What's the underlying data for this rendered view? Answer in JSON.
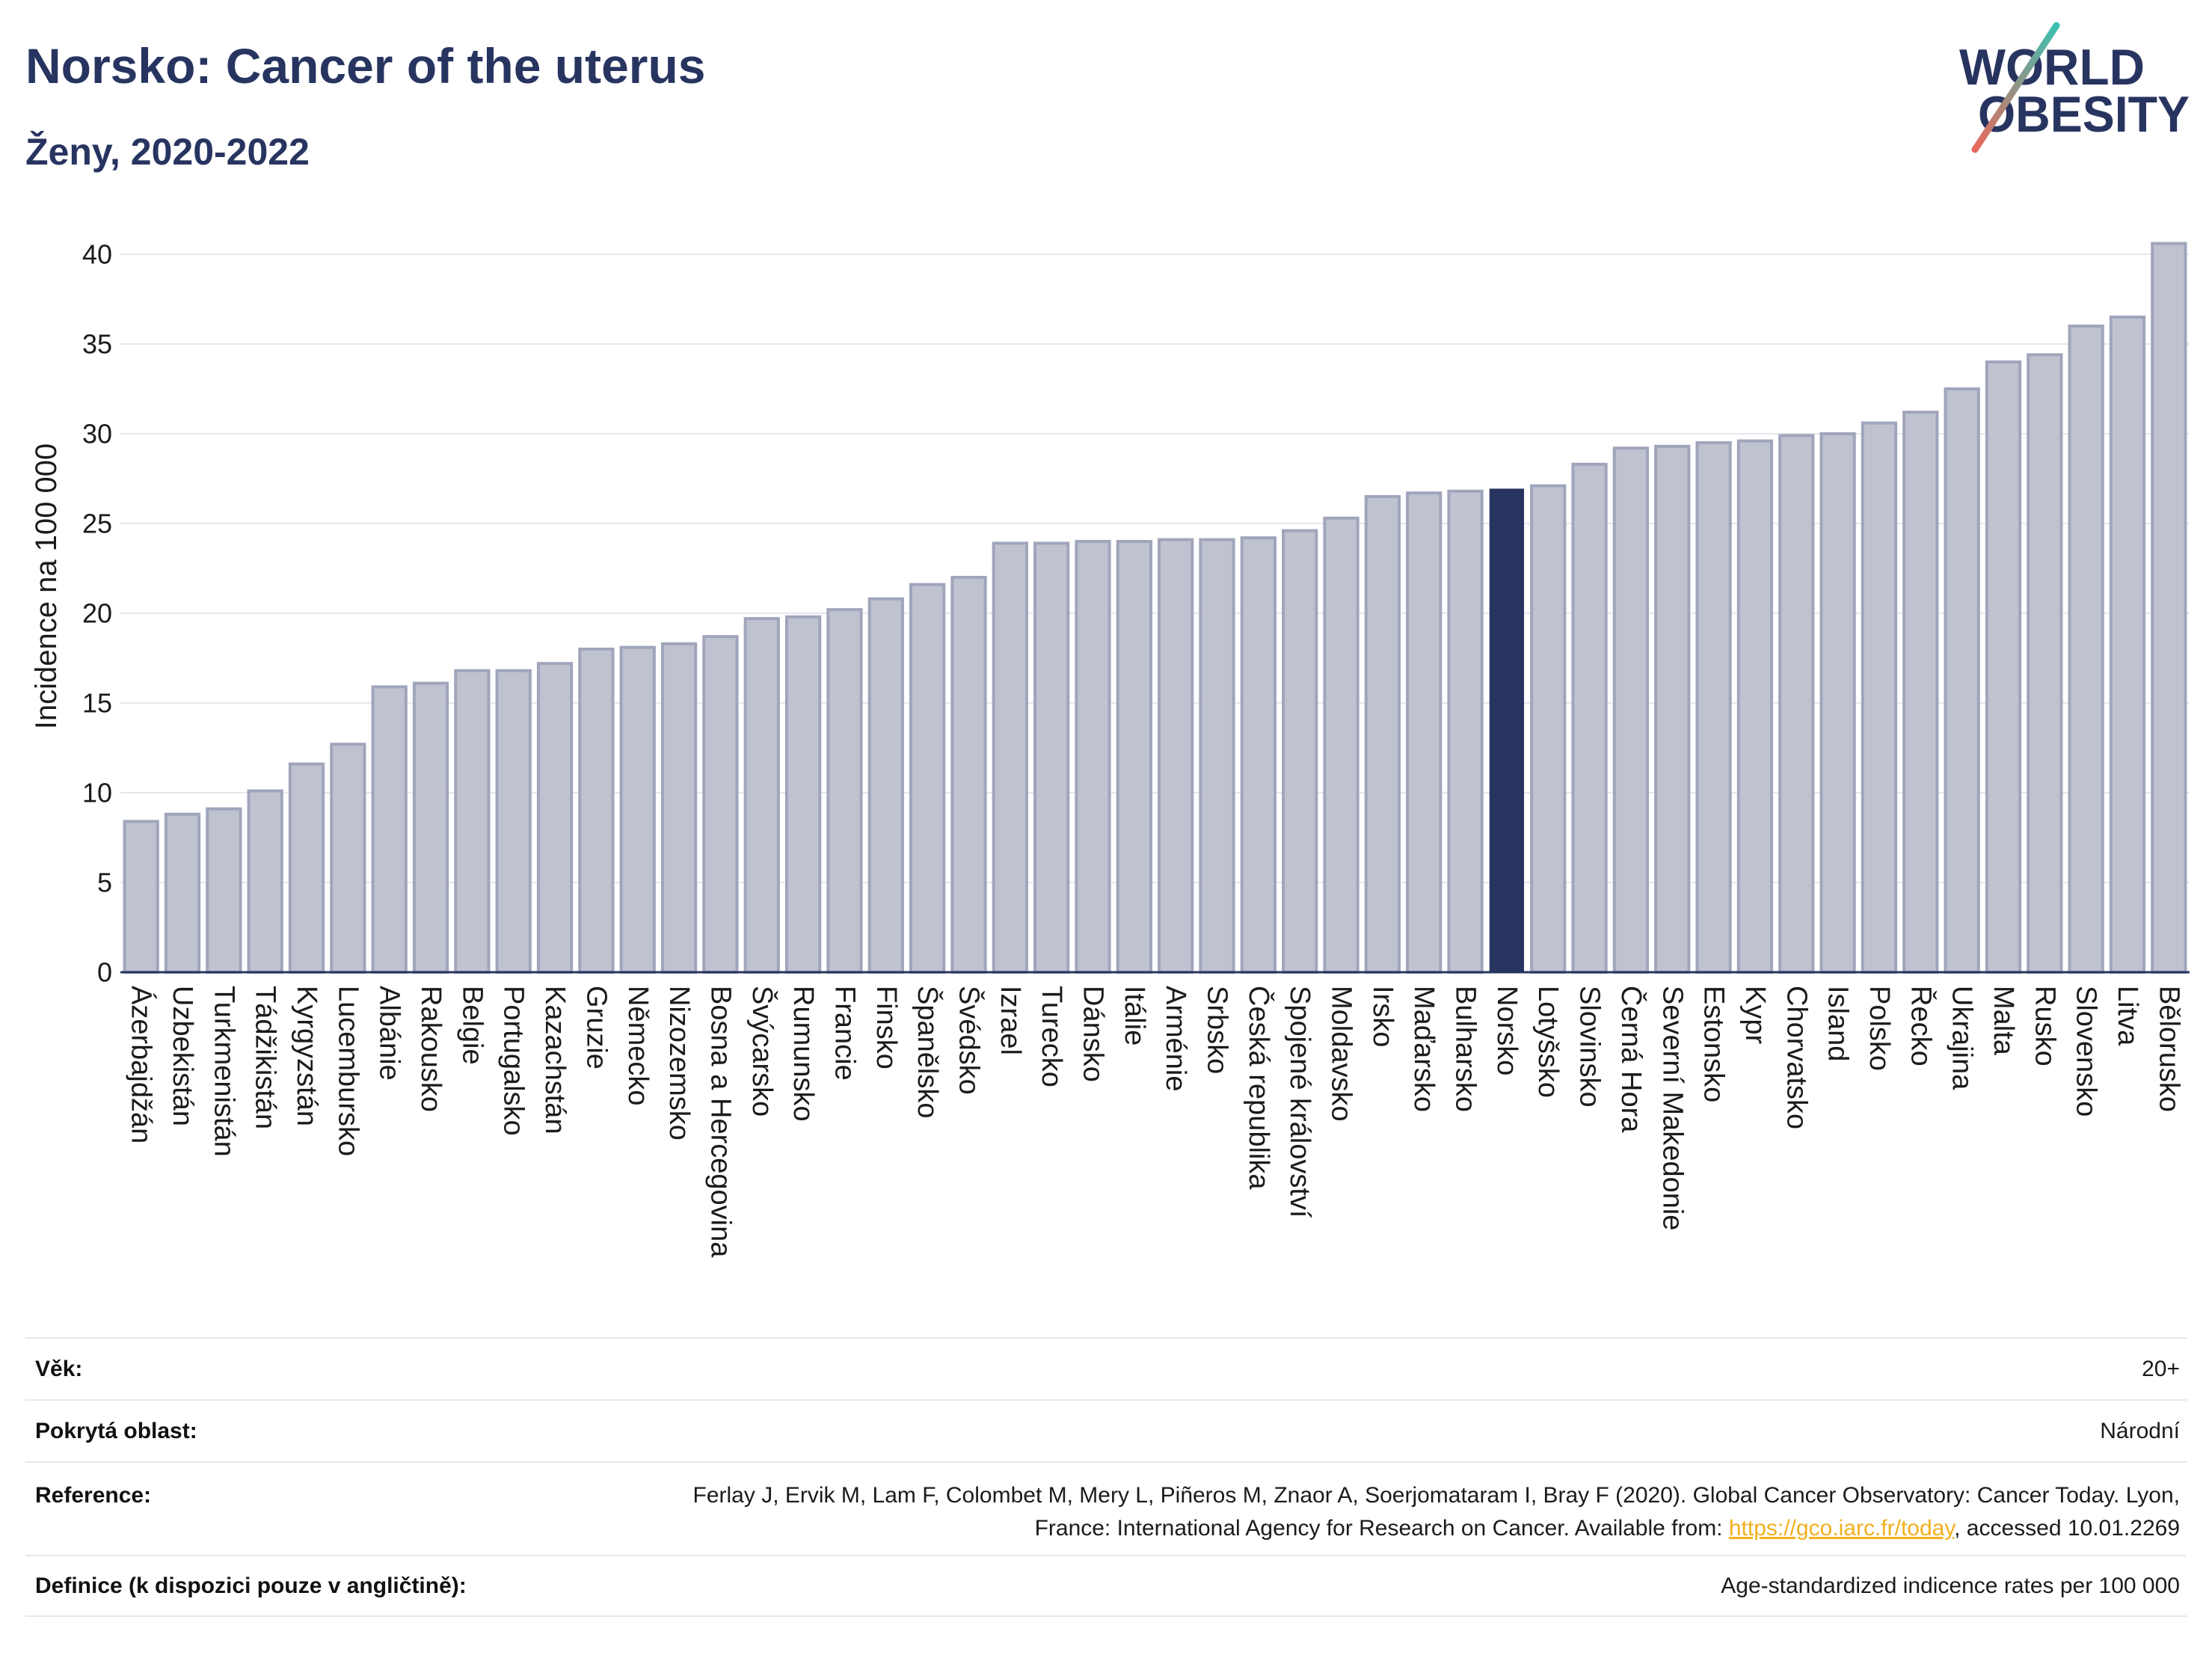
{
  "header": {
    "title": "Norsko: Cancer of the uterus",
    "subtitle": "Ženy, 2020-2022"
  },
  "logo": {
    "line1": "WORLD",
    "line2": "OBESITY"
  },
  "colors": {
    "navy": "#283460",
    "bar": "#bfc3d0",
    "bar_stroke": "#a0a5bb",
    "highlight": "#283460",
    "grid": "#e6e7ec",
    "link": "#f2b01e",
    "logo_teal": "#3dbfb1",
    "logo_coral": "#e8685a"
  },
  "chart_data": {
    "type": "bar",
    "ylabel": "Incidence na 100 000",
    "ylim": [
      0,
      42
    ],
    "yticks": [
      0,
      5,
      10,
      15,
      20,
      25,
      30,
      35,
      40
    ],
    "grid": true,
    "highlight_index": 33,
    "categories": [
      "Ázerbajdžán",
      "Uzbekistán",
      "Turkmenistán",
      "Tádžikistán",
      "Kyrgyzstán",
      "Lucembursko",
      "Albánie",
      "Rakousko",
      "Belgie",
      "Portugalsko",
      "Kazachstán",
      "Gruzie",
      "Německo",
      "Nizozemsko",
      "Bosna a Hercegovina",
      "Švýcarsko",
      "Rumunsko",
      "Francie",
      "Finsko",
      "Španělsko",
      "Švédsko",
      "Izrael",
      "Turecko",
      "Dánsko",
      "Itálie",
      "Arménie",
      "Srbsko",
      "Česká republika",
      "Spojené království",
      "Moldavsko",
      "Irsko",
      "Maďarsko",
      "Bulharsko",
      "Norsko",
      "Lotyšsko",
      "Slovinsko",
      "Černá Hora",
      "Severní Makedonie",
      "Estonsko",
      "Kypr",
      "Chorvatsko",
      "Island",
      "Polsko",
      "Řecko",
      "Ukrajina",
      "Malta",
      "Rusko",
      "Slovensko",
      "Litva",
      "Bělorusko"
    ],
    "values": [
      8.4,
      8.8,
      9.1,
      10.1,
      11.6,
      12.7,
      15.9,
      16.1,
      16.8,
      16.8,
      17.2,
      18.0,
      18.1,
      18.3,
      18.7,
      19.7,
      19.8,
      20.2,
      20.8,
      21.6,
      22.0,
      23.9,
      23.9,
      24.0,
      24.0,
      24.1,
      24.1,
      24.2,
      24.6,
      25.3,
      26.5,
      26.7,
      26.8,
      26.9,
      27.1,
      28.3,
      29.2,
      29.3,
      29.5,
      29.6,
      29.9,
      30.0,
      30.6,
      31.2,
      32.5,
      34.0,
      34.4,
      36.0,
      36.5,
      40.6
    ]
  },
  "details": [
    {
      "label": "Věk:",
      "value": "20+"
    },
    {
      "label": "Pokrytá oblast:",
      "value": "Národní"
    }
  ],
  "reference": {
    "label": "Reference:",
    "text": "Ferlay J, Ervik M, Lam F, Colombet M, Mery L, Piñeros M, Znaor A, Soerjomataram I, Bray F (2020). Global Cancer Observatory: Cancer Today. Lyon, France: International Agency for Research on Cancer. Available from: ",
    "link": "https://gco.iarc.fr/today",
    "suffix": ", accessed 10.01.2269"
  },
  "definition": {
    "label": "Definice (k dispozici pouze v angličtině):",
    "value": "Age-standardized indicence rates per 100 000"
  }
}
